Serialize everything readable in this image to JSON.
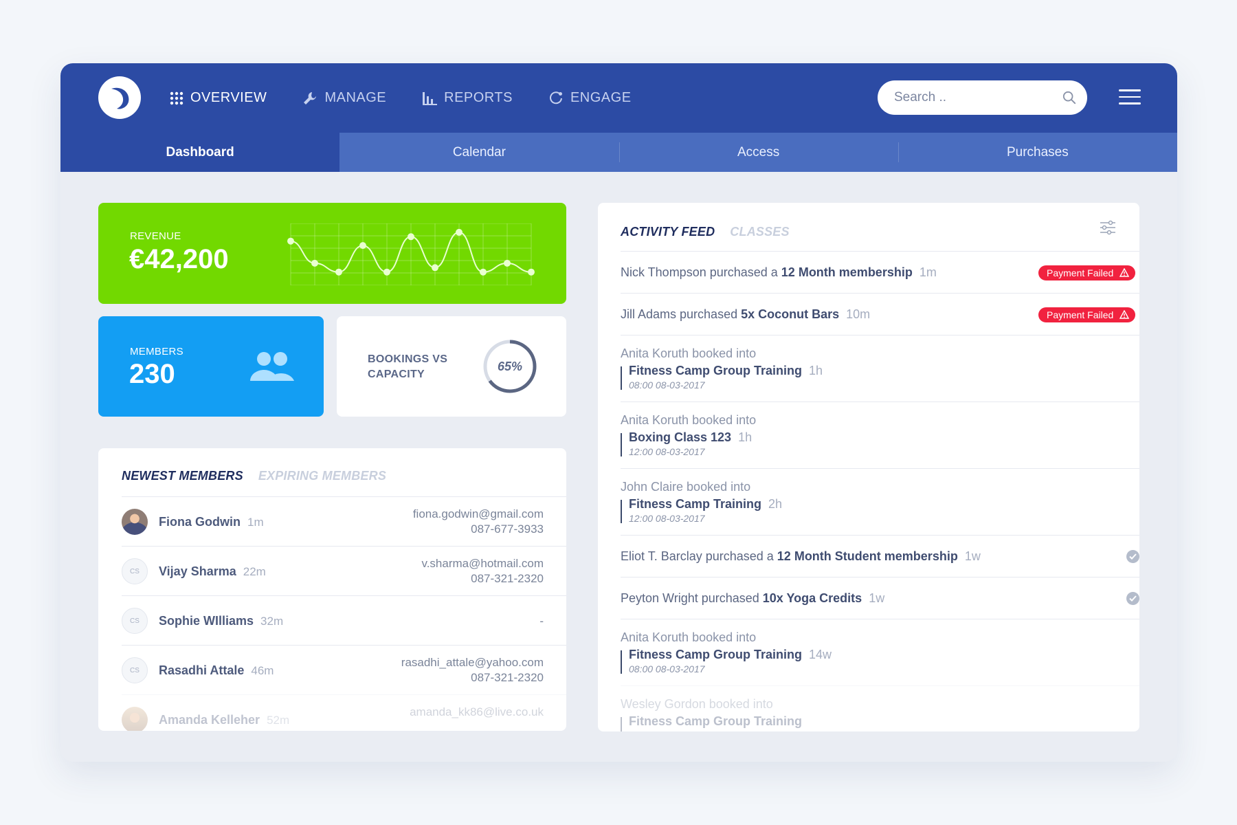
{
  "nav": {
    "items": [
      {
        "label": "OVERVIEW",
        "icon": "grid-icon",
        "active": true
      },
      {
        "label": "MANAGE",
        "icon": "wrench-icon",
        "active": false
      },
      {
        "label": "REPORTS",
        "icon": "bar-chart-icon",
        "active": false
      },
      {
        "label": "ENGAGE",
        "icon": "refresh-icon",
        "active": false
      }
    ],
    "search_placeholder": "Search .."
  },
  "tabs": [
    {
      "label": "Dashboard",
      "active": true
    },
    {
      "label": "Calendar",
      "active": false
    },
    {
      "label": "Access",
      "active": false
    },
    {
      "label": "Purchases",
      "active": false
    }
  ],
  "stats": {
    "revenue": {
      "label": "REVENUE",
      "value": "€42,200",
      "trend": [
        5,
        2.5,
        1.5,
        4.5,
        1.5,
        5.5,
        2,
        6,
        1.5,
        2.5,
        1.5
      ],
      "color": "#72d900"
    },
    "members": {
      "label": "MEMBERS",
      "value": "230",
      "color": "#139ef3"
    },
    "bookings": {
      "label": "BOOKINGS VS CAPACITY",
      "percent_text": "65%",
      "percent": 65
    }
  },
  "members_panel": {
    "tabs": [
      "NEWEST MEMBERS",
      "EXPIRING MEMBERS"
    ],
    "rows": [
      {
        "name": "Fiona Godwin",
        "time": "1m",
        "email": "fiona.godwin@gmail.com",
        "phone": "087-677-3933",
        "avatar": "photo"
      },
      {
        "name": "Vijay Sharma",
        "time": "22m",
        "email": "v.sharma@hotmail.com",
        "phone": "087-321-2320",
        "avatar": "CS"
      },
      {
        "name": "Sophie WIlliams",
        "time": "32m",
        "email": "-",
        "phone": "",
        "avatar": "CS"
      },
      {
        "name": "Rasadhi Attale",
        "time": "46m",
        "email": "rasadhi_attale@yahoo.com",
        "phone": "087-321-2320",
        "avatar": "CS"
      },
      {
        "name": "Amanda Kelleher",
        "time": "52m",
        "email": "amanda_kk86@live.co.uk",
        "phone": "",
        "avatar": "photo"
      }
    ]
  },
  "feed": {
    "tabs": [
      "ACTIVITY FEED",
      "CLASSES"
    ],
    "status_colors": {
      "failed": "#f1223f",
      "ok": "#b4bccb"
    },
    "items": [
      {
        "type": "purchase",
        "text": "Nick Thompson purchased a ",
        "bold": "12 Month membership",
        "ago": "1m",
        "status": "Payment Failed"
      },
      {
        "type": "purchase",
        "text": "Jill Adams purchased ",
        "bold": "5x Coconut Bars",
        "ago": "10m",
        "status": "Payment Failed"
      },
      {
        "type": "booking",
        "intro": "Anita Koruth booked into",
        "class": "Fitness Camp Group Training",
        "ago": "1h",
        "date": "08:00 08-03-2017"
      },
      {
        "type": "booking",
        "intro": "Anita Koruth booked into",
        "class": "Boxing Class 123",
        "ago": "1h",
        "date": "12:00 08-03-2017"
      },
      {
        "type": "booking",
        "intro": "John Claire booked into",
        "class": "Fitness Camp Training",
        "ago": "2h",
        "date": "12:00 08-03-2017"
      },
      {
        "type": "purchase",
        "text": "Eliot T. Barclay purchased a ",
        "bold": "12 Month Student membership",
        "ago": "1w",
        "status": "ok"
      },
      {
        "type": "purchase",
        "text": "Peyton Wright purchased ",
        "bold": "10x Yoga Credits",
        "ago": "1w",
        "status": "ok"
      },
      {
        "type": "booking",
        "intro": "Anita Koruth booked into",
        "class": "Fitness Camp Group Training",
        "ago": "14w",
        "date": "08:00 08-03-2017"
      },
      {
        "type": "booking",
        "intro": "Wesley Gordon booked into",
        "class": "Fitness Camp Group Training",
        "ago": "",
        "date": ""
      }
    ]
  }
}
